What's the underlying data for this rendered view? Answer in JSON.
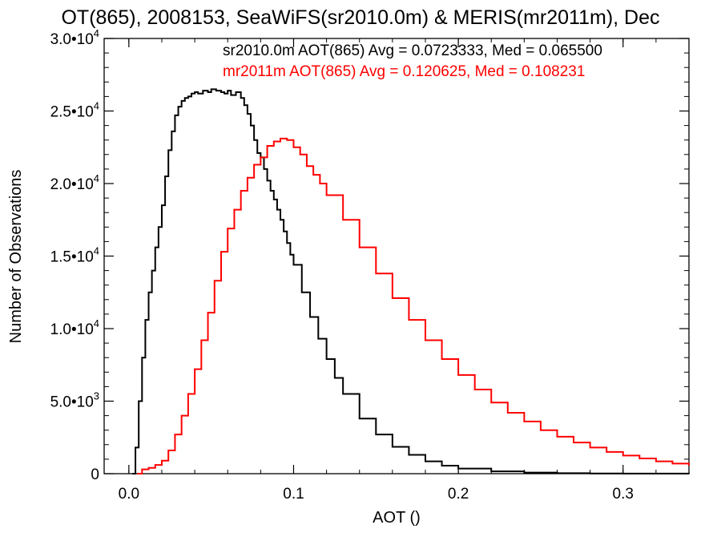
{
  "chart_data": {
    "type": "line",
    "title": "OT(865), 2008153, SeaWiFS(sr2010.0m) & MERIS(mr2011m), Dec",
    "xlabel": "AOT ()",
    "ylabel": "Number of Observations",
    "xlim": [
      -0.015,
      0.34
    ],
    "ylim": [
      0,
      30000
    ],
    "x_ticks": [
      {
        "value": 0.0,
        "label": "0.0"
      },
      {
        "value": 0.1,
        "label": "0.1"
      },
      {
        "value": 0.2,
        "label": "0.2"
      },
      {
        "value": 0.3,
        "label": "0.3"
      }
    ],
    "y_ticks": [
      {
        "value": 0,
        "mantissa": "0",
        "exp": ""
      },
      {
        "value": 5000,
        "mantissa": "5.0•10",
        "exp": "3"
      },
      {
        "value": 10000,
        "mantissa": "1.0•10",
        "exp": "4"
      },
      {
        "value": 15000,
        "mantissa": "1.5•10",
        "exp": "4"
      },
      {
        "value": 20000,
        "mantissa": "2.0•10",
        "exp": "4"
      },
      {
        "value": 25000,
        "mantissa": "2.5•10",
        "exp": "4"
      },
      {
        "value": 30000,
        "mantissa": "3.0•10",
        "exp": "4"
      }
    ],
    "grid": false,
    "legend_placement": "top-right",
    "series": [
      {
        "name": "sr2010.0m AOT(865) Avg = 0.0723333, Med = 0.065500",
        "color": "#000000",
        "step": true,
        "x": [
          0.002,
          0.004,
          0.006,
          0.008,
          0.01,
          0.012,
          0.014,
          0.016,
          0.018,
          0.02,
          0.022,
          0.024,
          0.026,
          0.028,
          0.03,
          0.032,
          0.034,
          0.036,
          0.038,
          0.04,
          0.042,
          0.045,
          0.048,
          0.05,
          0.053,
          0.056,
          0.058,
          0.06,
          0.062,
          0.065,
          0.068,
          0.07,
          0.072,
          0.074,
          0.076,
          0.078,
          0.08,
          0.082,
          0.084,
          0.086,
          0.088,
          0.09,
          0.092,
          0.094,
          0.096,
          0.098,
          0.1,
          0.105,
          0.11,
          0.115,
          0.12,
          0.125,
          0.13,
          0.14,
          0.15,
          0.16,
          0.17,
          0.18,
          0.19,
          0.2,
          0.22,
          0.24,
          0.26,
          0.28,
          0.3,
          0.32,
          0.34
        ],
        "y": [
          0,
          1800,
          5000,
          8000,
          10600,
          12500,
          14000,
          15600,
          17000,
          18500,
          20500,
          22300,
          23600,
          24700,
          25300,
          25700,
          25900,
          26000,
          26200,
          26300,
          26200,
          26400,
          26300,
          26500,
          26400,
          26300,
          26200,
          26400,
          26100,
          26300,
          25900,
          25400,
          24800,
          24000,
          23000,
          22100,
          21800,
          21000,
          20200,
          19500,
          18900,
          18200,
          17500,
          16700,
          15900,
          15100,
          14400,
          12500,
          10800,
          9300,
          7900,
          6600,
          5500,
          3800,
          2700,
          1850,
          1300,
          850,
          550,
          350,
          160,
          75,
          35,
          15,
          8,
          4,
          2
        ]
      },
      {
        "name": "mr2011m AOT(865) Avg = 0.120625, Med = 0.108231",
        "color": "#ff0000",
        "step": true,
        "x": [
          0.005,
          0.008,
          0.012,
          0.016,
          0.02,
          0.024,
          0.028,
          0.032,
          0.036,
          0.04,
          0.044,
          0.048,
          0.052,
          0.056,
          0.06,
          0.064,
          0.068,
          0.072,
          0.076,
          0.08,
          0.084,
          0.088,
          0.092,
          0.096,
          0.1,
          0.104,
          0.108,
          0.112,
          0.116,
          0.12,
          0.13,
          0.14,
          0.15,
          0.16,
          0.17,
          0.18,
          0.19,
          0.2,
          0.21,
          0.22,
          0.23,
          0.24,
          0.25,
          0.26,
          0.27,
          0.28,
          0.29,
          0.3,
          0.31,
          0.32,
          0.33,
          0.34
        ],
        "y": [
          0,
          300,
          400,
          600,
          900,
          1600,
          2700,
          4000,
          5500,
          7200,
          9200,
          11100,
          13300,
          15300,
          16900,
          18200,
          19500,
          20400,
          21300,
          21800,
          22600,
          22900,
          23100,
          23000,
          22500,
          22000,
          21200,
          20600,
          20000,
          19200,
          17500,
          15600,
          13800,
          12100,
          10600,
          9200,
          7900,
          6800,
          5800,
          4900,
          4200,
          3600,
          3000,
          2550,
          2150,
          1800,
          1500,
          1250,
          1050,
          850,
          700,
          560
        ]
      }
    ]
  }
}
